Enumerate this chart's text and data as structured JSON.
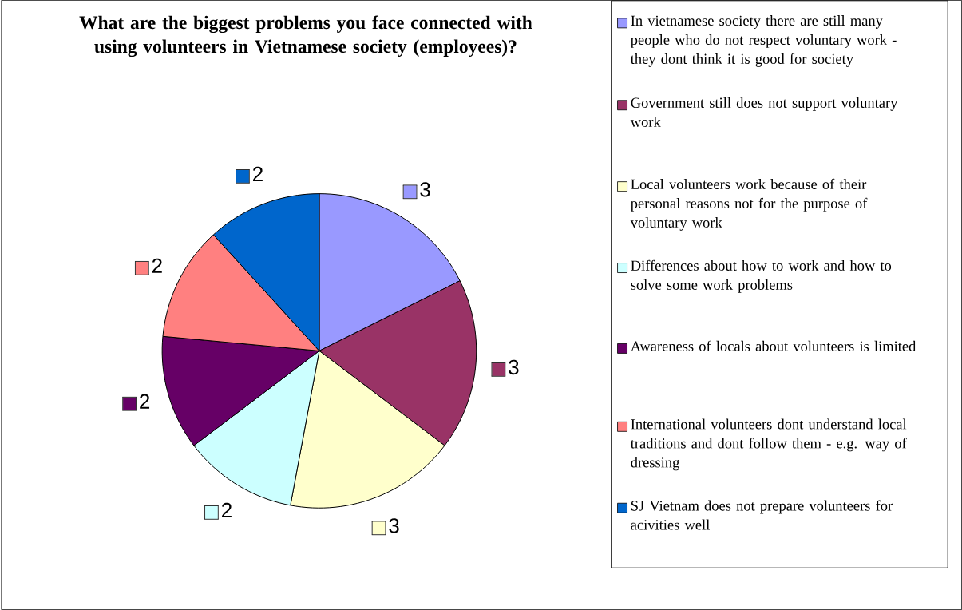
{
  "chart_data": {
    "type": "pie",
    "title": "What are the biggest problems you face connected with using volunteers in Vietnamese society (employees)?",
    "categories": [
      "In vietnamese society there are still many people who do not respect voluntary work - they dont think it is good for society",
      "Government still does not support voluntary work",
      "Local volunteers work because of their personal reasons not for the purpose of voluntary work",
      "Differences about how to work and how to solve some work problems",
      "Awareness of locals about volunteers is limited",
      "International volunteers dont understand local traditions and dont follow them - e.g. way of dressing",
      "SJ Vietnam does not prepare volunteers for acivities well"
    ],
    "values": [
      3,
      3,
      3,
      2,
      2,
      2,
      2
    ],
    "colors": [
      "#9999ff",
      "#993366",
      "#ffffcc",
      "#ccffff",
      "#660066",
      "#ff8080",
      "#0066cc"
    ],
    "data_labels": true,
    "legend": "right"
  }
}
